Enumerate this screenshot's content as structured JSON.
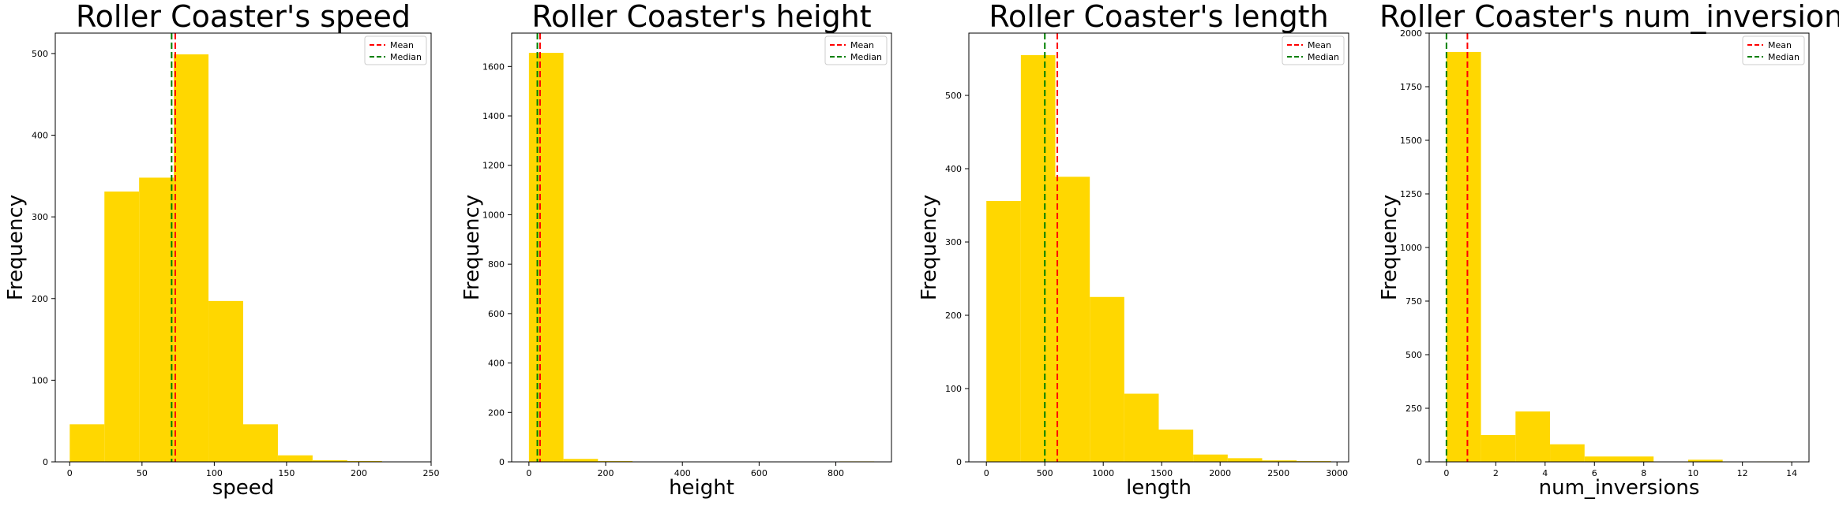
{
  "chart_data": [
    {
      "type": "bar",
      "title": "Roller Coaster's speed",
      "xlabel": "speed",
      "ylabel": "Frequency",
      "xlim": [
        -10,
        250
      ],
      "ylim": [
        0,
        525
      ],
      "xticks": [
        0,
        50,
        100,
        150,
        200,
        250
      ],
      "yticks": [
        0,
        100,
        200,
        300,
        400,
        500
      ],
      "bin_edges": [
        0,
        24,
        48,
        72,
        96,
        120,
        144,
        168,
        192,
        216,
        240
      ],
      "values": [
        46,
        331,
        348,
        499,
        197,
        46,
        8,
        2,
        1,
        0
      ],
      "mean": 73,
      "median": 70.5,
      "legend": [
        "Mean",
        "Median"
      ],
      "colors": {
        "bar": "#FFD700",
        "mean": "#FF0000",
        "median": "#008000"
      },
      "legend_placement": "top-right"
    },
    {
      "type": "bar",
      "title": "Roller Coaster's height",
      "xlabel": "height",
      "ylabel": "Frequency",
      "xlim": [
        -45,
        945
      ],
      "ylim": [
        0,
        1735
      ],
      "xticks": [
        0,
        200,
        400,
        600,
        800
      ],
      "yticks": [
        0,
        200,
        400,
        600,
        800,
        1000,
        1200,
        1400,
        1600
      ],
      "bin_edges": [
        0,
        90,
        180,
        270,
        360,
        450,
        540,
        630,
        720,
        810,
        900
      ],
      "values": [
        1655,
        12,
        3,
        0,
        0,
        0,
        0,
        0,
        0,
        2
      ],
      "mean": 29,
      "median": 22,
      "legend": [
        "Mean",
        "Median"
      ],
      "colors": {
        "bar": "#FFD700",
        "mean": "#FF0000",
        "median": "#008000"
      },
      "legend_placement": "top-right"
    },
    {
      "type": "bar",
      "title": "Roller Coaster's length",
      "xlabel": "length",
      "ylabel": "Frequency",
      "xlim": [
        -150,
        3100
      ],
      "ylim": [
        0,
        585
      ],
      "xticks": [
        0,
        500,
        1000,
        1500,
        2000,
        2500,
        3000
      ],
      "yticks": [
        0,
        100,
        200,
        300,
        400,
        500
      ],
      "bin_edges": [
        0,
        295,
        590,
        885,
        1180,
        1475,
        1770,
        2065,
        2360,
        2655,
        2950
      ],
      "values": [
        356,
        555,
        389,
        225,
        93,
        44,
        10,
        5,
        2,
        1
      ],
      "mean": 607,
      "median": 500,
      "legend": [
        "Mean",
        "Median"
      ],
      "colors": {
        "bar": "#FFD700",
        "mean": "#FF0000",
        "median": "#008000"
      },
      "legend_placement": "top-right"
    },
    {
      "type": "bar",
      "title": "Roller Coaster's num_inversions",
      "xlabel": "num_inversions",
      "ylabel": "Frequency",
      "xlim": [
        -0.7,
        14.7
      ],
      "ylim": [
        0,
        2000
      ],
      "xticks": [
        0,
        2,
        4,
        6,
        8,
        10,
        12,
        14
      ],
      "yticks": [
        0,
        250,
        500,
        750,
        1000,
        1250,
        1500,
        1750,
        2000
      ],
      "bin_edges": [
        0,
        1.4,
        2.8,
        4.2,
        5.6,
        7,
        8.4,
        9.8,
        11.2,
        12.6,
        14
      ],
      "values": [
        1912,
        125,
        235,
        82,
        25,
        25,
        0,
        10,
        0,
        2
      ],
      "mean": 0.85,
      "median": 0,
      "legend": [
        "Mean",
        "Median"
      ],
      "colors": {
        "bar": "#FFD700",
        "mean": "#FF0000",
        "median": "#008000"
      },
      "legend_placement": "top-right"
    }
  ]
}
